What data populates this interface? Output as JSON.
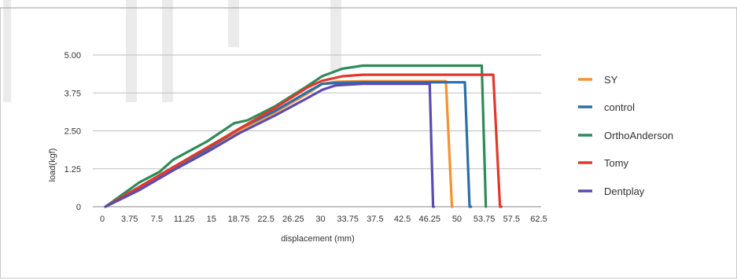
{
  "chart_data": {
    "type": "line",
    "xlabel": "displacement (mm)",
    "ylabel": "load(kgf)",
    "xlim": [
      -1.875,
      64.375
    ],
    "ylim": [
      0,
      5.0
    ],
    "x_tick_labels": [
      "0",
      "3.75",
      "7.5",
      "11.25",
      "15",
      "18.75",
      "22.5",
      "26.25",
      "30",
      "33.75",
      "37.5",
      "42.5",
      "46.25",
      "50",
      "53.75",
      "57.5",
      "62.5"
    ],
    "y_ticks": [
      {
        "value": 0,
        "label": "0"
      },
      {
        "value": 1.25,
        "label": "1.25"
      },
      {
        "value": 2.5,
        "label": "2.50"
      },
      {
        "value": 3.75,
        "label": "3.75"
      },
      {
        "value": 5.0,
        "label": "5.00"
      }
    ],
    "grid": true,
    "legend_position": "right",
    "series": [
      {
        "name": "SY",
        "color": "#f5922f",
        "x": [
          0,
          5,
          10,
          15,
          20,
          25,
          30,
          32,
          34,
          38,
          42,
          46,
          50.3,
          51.2,
          51.3
        ],
        "y": [
          0,
          0.6,
          1.25,
          1.85,
          2.55,
          3.1,
          3.75,
          4.05,
          4.12,
          4.14,
          4.14,
          4.14,
          4.14,
          0,
          0
        ]
      },
      {
        "name": "control",
        "color": "#2a6fa8",
        "x": [
          0,
          5,
          10,
          15,
          20,
          25,
          30,
          32,
          34,
          38,
          42,
          46,
          50,
          53.1,
          53.8,
          54.0
        ],
        "y": [
          0,
          0.65,
          1.3,
          1.9,
          2.6,
          3.15,
          3.8,
          4.05,
          4.08,
          4.1,
          4.1,
          4.1,
          4.1,
          4.1,
          0,
          0
        ]
      },
      {
        "name": "OrthoAnderson",
        "color": "#2e8b57",
        "x": [
          0,
          5,
          8,
          10,
          15,
          19,
          21,
          25,
          30,
          32,
          35,
          38,
          42,
          46,
          50,
          54,
          55.6,
          56.2
        ],
        "y": [
          0,
          0.8,
          1.15,
          1.55,
          2.15,
          2.75,
          2.85,
          3.3,
          4.0,
          4.3,
          4.55,
          4.65,
          4.65,
          4.65,
          4.65,
          4.65,
          4.65,
          0
        ]
      },
      {
        "name": "Tomy",
        "color": "#e2382c",
        "x": [
          0,
          5,
          10,
          15,
          20,
          25,
          30,
          32,
          35,
          38,
          42,
          46,
          50,
          54,
          57.3,
          58.3,
          58.5
        ],
        "y": [
          0,
          0.65,
          1.3,
          1.95,
          2.6,
          3.25,
          3.95,
          4.15,
          4.3,
          4.35,
          4.35,
          4.35,
          4.35,
          4.35,
          4.35,
          0,
          0
        ]
      },
      {
        "name": "Dentplay",
        "color": "#5b4bb0",
        "x": [
          0,
          5,
          10,
          15,
          20,
          25,
          30,
          32,
          34,
          38,
          42,
          46,
          47.9,
          48.4,
          48.5
        ],
        "y": [
          0,
          0.55,
          1.2,
          1.8,
          2.45,
          3.0,
          3.6,
          3.85,
          4.0,
          4.05,
          4.05,
          4.05,
          4.05,
          0,
          0
        ]
      }
    ]
  }
}
